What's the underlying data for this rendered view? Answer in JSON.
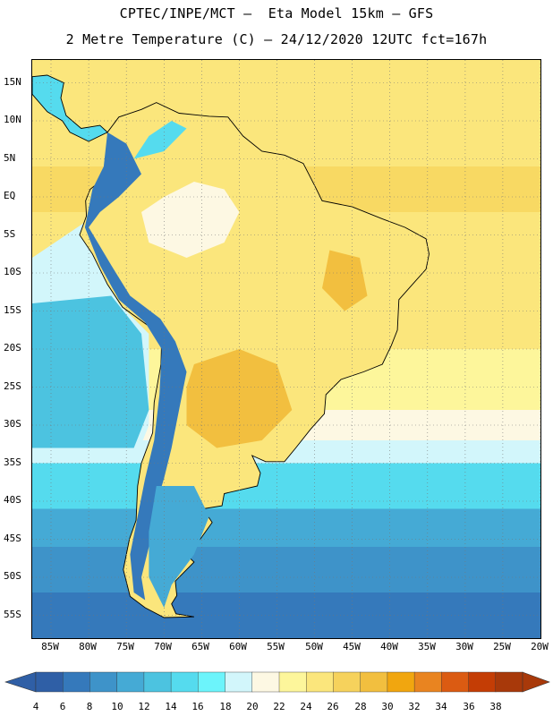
{
  "header": {
    "line1": "CPTEC/INPE/MCT –  Eta Model 15km – GFS",
    "line2": "2 Metre Temperature (C) – 24/12/2020 12UTC fct=167h"
  },
  "axes": {
    "lat_labels": [
      "15N",
      "10N",
      "5N",
      "EQ",
      "5S",
      "10S",
      "15S",
      "20S",
      "25S",
      "30S",
      "35S",
      "40S",
      "45S",
      "50S",
      "55S"
    ],
    "lon_labels": [
      "85W",
      "80W",
      "75W",
      "70W",
      "65W",
      "60W",
      "55W",
      "50W",
      "45W",
      "40W",
      "35W",
      "30W",
      "25W",
      "20W"
    ]
  },
  "colorbar": {
    "levels": [
      "4",
      "6",
      "8",
      "10",
      "12",
      "14",
      "16",
      "18",
      "20",
      "22",
      "24",
      "26",
      "28",
      "30",
      "32",
      "34",
      "36",
      "38"
    ],
    "colors": [
      "#2f5fa6",
      "#3579bb",
      "#3e93c9",
      "#45aad5",
      "#4cc3e0",
      "#55dbee",
      "#6cf4fb",
      "#d2f6fb",
      "#fdf8e3",
      "#fdf69b",
      "#fbe67c",
      "#f6d25c",
      "#f2bf3f",
      "#f1a60f",
      "#e98420",
      "#db5b12",
      "#c43d05",
      "#a8390a"
    ]
  },
  "map": {
    "ocean_bands": [
      {
        "lat_to": 18,
        "color": "#fce77f"
      },
      {
        "lat_to": 4,
        "color": "#fbe67c"
      },
      {
        "lat_to": -2,
        "color": "#f8d963"
      },
      {
        "lat_to": -20,
        "color": "#fbe67c"
      },
      {
        "lat_to": -28,
        "color": "#fdf69b"
      },
      {
        "lat_to": -32,
        "color": "#fdf8e3"
      },
      {
        "lat_to": -35,
        "color": "#d2f6fb"
      },
      {
        "lat_to": -41,
        "color": "#55dbee"
      },
      {
        "lat_to": -46,
        "color": "#45aad5"
      },
      {
        "lat_to": -52,
        "color": "#3e93c9"
      },
      {
        "lat_to": -58,
        "color": "#3579bb"
      }
    ],
    "pacific_shelf_color": "#d2f6fb",
    "pacific_cold_color": "#4cc3e0",
    "land_color": "#fbe67c",
    "amazon_color": "#fdf8e3",
    "hot_core_color": "#f2bf3f",
    "andes_color": "#3579bb",
    "highland_color": "#55dbee",
    "patagonia_color": "#45aad5"
  }
}
